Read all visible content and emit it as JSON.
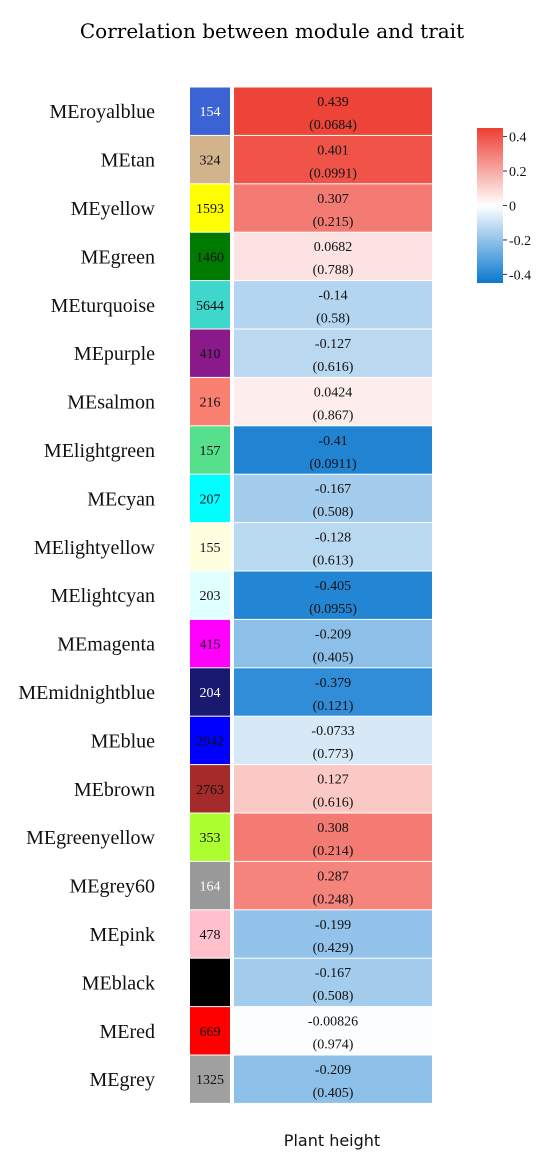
{
  "chart_data": {
    "type": "heatmap",
    "title": "Correlation between module and trait",
    "xlabel": "Plant height",
    "colorbar": {
      "ticks": [
        "0.4",
        "0.2",
        "0",
        "-0.2",
        "-0.4"
      ],
      "tick_values": [
        0.4,
        0.2,
        0,
        -0.2,
        -0.4
      ],
      "range": [
        -0.45,
        0.45
      ],
      "colors": {
        "low": "#0a78cf",
        "mid": "#ffffff",
        "high": "#ee3e32"
      }
    },
    "rows": [
      {
        "module": "MEroyalblue",
        "color": "#3b63d4",
        "count": "154",
        "corr_label": "0.439",
        "p_label": "(0.0684)",
        "corr": 0.439,
        "count_color": "#ffffff"
      },
      {
        "module": "MEtan",
        "color": "#d2b48c",
        "count": "324",
        "corr_label": "0.401",
        "p_label": "(0.0991)",
        "corr": 0.401,
        "count_color": "#111111"
      },
      {
        "module": "MEyellow",
        "color": "#ffff00",
        "count": "1593",
        "corr_label": "0.307",
        "p_label": "(0.215)",
        "corr": 0.307,
        "count_color": "#111111"
      },
      {
        "module": "MEgreen",
        "color": "#007a00",
        "count": "1460",
        "corr_label": "0.0682",
        "p_label": "(0.788)",
        "corr": 0.0682,
        "count_color": "#111111"
      },
      {
        "module": "MEturquoise",
        "color": "#3fd6cc",
        "count": "5644",
        "corr_label": "-0.14",
        "p_label": "(0.58)",
        "corr": -0.14,
        "count_color": "#111111"
      },
      {
        "module": "MEpurple",
        "color": "#8a1a8a",
        "count": "410",
        "corr_label": "-0.127",
        "p_label": "(0.616)",
        "corr": -0.127,
        "count_color": "#111111"
      },
      {
        "module": "MEsalmon",
        "color": "#fa8072",
        "count": "216",
        "corr_label": "0.0424",
        "p_label": "(0.867)",
        "corr": 0.0424,
        "count_color": "#111111"
      },
      {
        "module": "MElightgreen",
        "color": "#57e08b",
        "count": "157",
        "corr_label": "-0.41",
        "p_label": "(0.0911)",
        "corr": -0.41,
        "count_color": "#111111"
      },
      {
        "module": "MEcyan",
        "color": "#00ffff",
        "count": "207",
        "corr_label": "-0.167",
        "p_label": "(0.508)",
        "corr": -0.167,
        "count_color": "#111111"
      },
      {
        "module": "MElightyellow",
        "color": "#ffffe0",
        "count": "155",
        "corr_label": "-0.128",
        "p_label": "(0.613)",
        "corr": -0.128,
        "count_color": "#111111"
      },
      {
        "module": "MElightcyan",
        "color": "#e0ffff",
        "count": "203",
        "corr_label": "-0.405",
        "p_label": "(0.0955)",
        "corr": -0.405,
        "count_color": "#111111"
      },
      {
        "module": "MEmagenta",
        "color": "#ff00ff",
        "count": "415",
        "corr_label": "-0.209",
        "p_label": "(0.405)",
        "corr": -0.209,
        "count_color": "#111111"
      },
      {
        "module": "MEmidnightblue",
        "color": "#191970",
        "count": "204",
        "corr_label": "-0.379",
        "p_label": "(0.121)",
        "corr": -0.379,
        "count_color": "#ffffff"
      },
      {
        "module": "MEblue",
        "color": "#0000ff",
        "count": "2942",
        "corr_label": "-0.0733",
        "p_label": "(0.773)",
        "corr": -0.0733,
        "count_color": "#111111"
      },
      {
        "module": "MEbrown",
        "color": "#a52a2a",
        "count": "2763",
        "corr_label": "0.127",
        "p_label": "(0.616)",
        "corr": 0.127,
        "count_color": "#111111"
      },
      {
        "module": "MEgreenyellow",
        "color": "#adff2f",
        "count": "353",
        "corr_label": "0.308",
        "p_label": "(0.214)",
        "corr": 0.308,
        "count_color": "#111111"
      },
      {
        "module": "MEgrey60",
        "color": "#999999",
        "count": "164",
        "corr_label": "0.287",
        "p_label": "(0.248)",
        "corr": 0.287,
        "count_color": "#ffffff"
      },
      {
        "module": "MEpink",
        "color": "#ffc0cb",
        "count": "478",
        "corr_label": "-0.199",
        "p_label": "(0.429)",
        "corr": -0.199,
        "count_color": "#111111"
      },
      {
        "module": "MEblack",
        "color": "#000000",
        "count": "",
        "corr_label": "-0.167",
        "p_label": "(0.508)",
        "corr": -0.167,
        "count_color": "#111111"
      },
      {
        "module": "MEred",
        "color": "#ff0000",
        "count": "669",
        "corr_label": "-0.00826",
        "p_label": "(0.974)",
        "corr": -0.00826,
        "count_color": "#111111"
      },
      {
        "module": "MEgrey",
        "color": "#a0a0a0",
        "count": "1325",
        "corr_label": "-0.209",
        "p_label": "(0.405)",
        "corr": -0.209,
        "count_color": "#111111"
      }
    ]
  }
}
